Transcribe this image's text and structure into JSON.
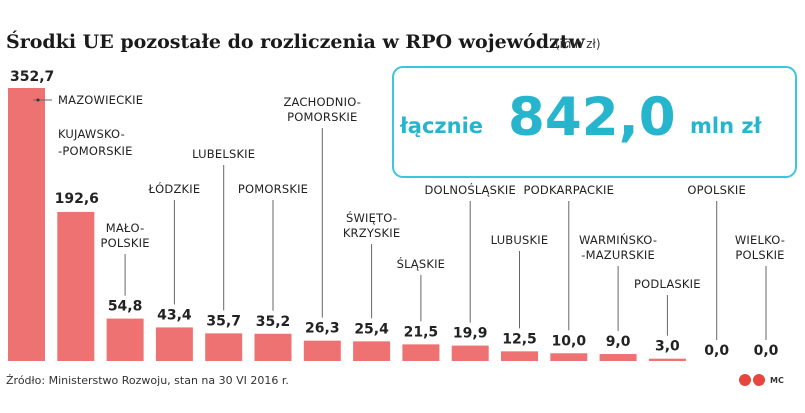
{
  "chart_data": {
    "type": "bar",
    "title": "Środki UE pozostałe do rozliczenia w RPO województw",
    "unit": "(mln zł)",
    "categories": [
      "MAZOWIECKIE",
      "KUJAWSKO-POMORSKIE",
      "MAŁOPOLSKIE",
      "ŁÓDZKIE",
      "LUBELSKIE",
      "POMORSKIE",
      "ZACHODNIOPOMORSKIE",
      "ŚWIĘTOKRZYSKIE",
      "ŚLĄSKIE",
      "DOLNOŚLĄSKIE",
      "LUBUSKIE",
      "PODKARPACKIE",
      "WARMIŃSKO-MAZURSKIE",
      "PODLASKIE",
      "OPOLSKIE",
      "WIELKOPOLSKIE"
    ],
    "label_lines": [
      [
        "MAZOWIECKIE"
      ],
      [
        "KUJAWSKO-",
        "-POMORSKIE"
      ],
      [
        "MAŁO-",
        "POLSKIE"
      ],
      [
        "ŁÓDZKIE"
      ],
      [
        "LUBELSKIE"
      ],
      [
        "POMORSKIE"
      ],
      [
        "ZACHODNIO-",
        "POMORSKIE"
      ],
      [
        "ŚWIĘTO-",
        "KRZYSKIE"
      ],
      [
        "ŚLĄSKIE"
      ],
      [
        "DOLNOŚLĄSKIE"
      ],
      [
        "LUBUSKIE"
      ],
      [
        "PODKARPACKIE"
      ],
      [
        "WARMIŃSKO-",
        "-MAZURSKIE"
      ],
      [
        "PODLASKIE"
      ],
      [
        "OPOLSKIE"
      ],
      [
        "WIELKO-",
        "POLSKIE"
      ]
    ],
    "values": [
      352.7,
      192.6,
      54.8,
      43.4,
      35.7,
      35.2,
      26.3,
      25.4,
      21.5,
      19.9,
      12.5,
      10.0,
      9.0,
      3.0,
      0.0,
      0.0
    ],
    "value_labels": [
      "352,7",
      "192,6",
      "54,8",
      "43,4",
      "35,7",
      "35,2",
      "26,3",
      "25,4",
      "21,5",
      "19,9",
      "12,5",
      "10,0",
      "9,0",
      "3,0",
      "0,0",
      "0,0"
    ],
    "ylim": [
      0,
      352.7
    ],
    "colors": {
      "bar": "#ee7272",
      "accent": "#27b5cd"
    }
  },
  "total": {
    "prefix": "łącznie",
    "value": "842,0",
    "suffix": "mln zł"
  },
  "source": "Źródło: Ministerstwo Rozwoju, stan na 30 VI 2016 r.",
  "logo": {
    "text": "MC"
  }
}
